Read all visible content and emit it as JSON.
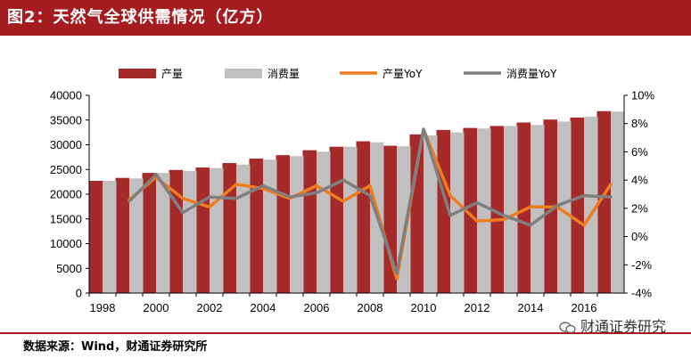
{
  "header": {
    "title": "图2：天然气全球供需情况（亿方）"
  },
  "footer": {
    "source": "数据来源：Wind，财通证券研究所",
    "watermark": "财通证券研究"
  },
  "colors": {
    "brand": "#a51c20",
    "production_bar": "#a52a2a",
    "consumption_bar": "#c0c0c0",
    "production_yoy": "#ed7d1e",
    "consumption_yoy": "#7f7f7f"
  },
  "chart_data": {
    "type": "bar",
    "title": "天然气全球供需情况（亿方）",
    "categories": [
      "1998",
      "1999",
      "2000",
      "2001",
      "2002",
      "2003",
      "2004",
      "2005",
      "2006",
      "2007",
      "2008",
      "2009",
      "2010",
      "2011",
      "2012",
      "2013",
      "2014",
      "2015",
      "2016",
      "2017"
    ],
    "x_tick_labels": [
      "1998",
      "",
      "2000",
      "",
      "2002",
      "",
      "2004",
      "",
      "2006",
      "",
      "2008",
      "",
      "2010",
      "",
      "2012",
      "",
      "2014",
      "",
      "2016",
      ""
    ],
    "series": [
      {
        "name": "产量",
        "kind": "bar",
        "axis": "left",
        "values": [
          22700,
          23300,
          24300,
          24900,
          25400,
          26300,
          27200,
          27900,
          28900,
          29600,
          30700,
          29800,
          32100,
          33000,
          33400,
          33800,
          34500,
          35100,
          35500,
          36800
        ]
      },
      {
        "name": "消费量",
        "kind": "bar",
        "axis": "left",
        "values": [
          22700,
          23200,
          24300,
          24700,
          25300,
          26000,
          27000,
          27700,
          28600,
          29600,
          30500,
          29700,
          31900,
          32500,
          33300,
          33800,
          34000,
          34700,
          35700,
          36700
        ]
      },
      {
        "name": "产量YoY",
        "kind": "line",
        "axis": "right",
        "values": [
          null,
          2.6,
          4.2,
          2.7,
          2.1,
          3.7,
          3.4,
          2.7,
          3.6,
          2.5,
          3.6,
          -3.0,
          7.6,
          2.9,
          1.1,
          1.2,
          2.1,
          2.1,
          0.8,
          3.7
        ]
      },
      {
        "name": "消费量YoY",
        "kind": "line",
        "axis": "right",
        "values": [
          null,
          2.5,
          4.4,
          1.7,
          2.8,
          2.7,
          3.6,
          2.8,
          3.1,
          4.0,
          2.9,
          -2.6,
          7.6,
          1.5,
          2.4,
          1.5,
          0.8,
          2.2,
          2.9,
          2.8
        ]
      }
    ],
    "left_axis": {
      "min": 0,
      "max": 40000,
      "ticks": [
        "0",
        "5000",
        "10000",
        "15000",
        "20000",
        "25000",
        "30000",
        "35000",
        "40000"
      ]
    },
    "right_axis": {
      "min": -4,
      "max": 10,
      "ticks": [
        "-4%",
        "-2%",
        "0%",
        "2%",
        "4%",
        "6%",
        "8%",
        "10%"
      ]
    },
    "grid": false,
    "legend_position": "top"
  }
}
